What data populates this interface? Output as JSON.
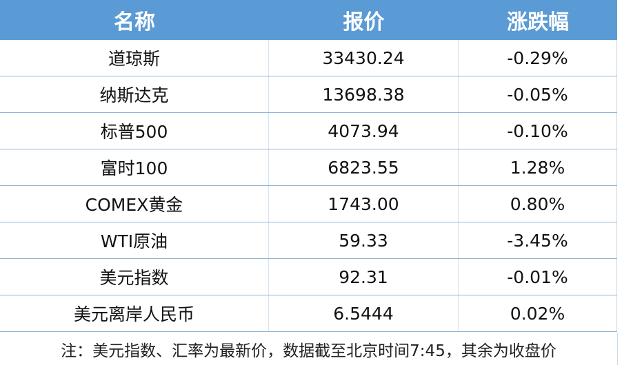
{
  "header": {
    "name": "名称",
    "price": "报价",
    "change": "涨跌幅"
  },
  "rows": [
    {
      "name": "道琼斯",
      "price": "33430.24",
      "change": "-0.29%"
    },
    {
      "name": "纳斯达克",
      "price": "13698.38",
      "change": "-0.05%"
    },
    {
      "name": "标普500",
      "price": "4073.94",
      "change": "-0.10%"
    },
    {
      "name": "富时100",
      "price": "6823.55",
      "change": "1.28%"
    },
    {
      "name": "COMEX黄金",
      "price": "1743.00",
      "change": "0.80%"
    },
    {
      "name": "WTI原油",
      "price": "59.33",
      "change": "-3.45%"
    },
    {
      "name": "美元指数",
      "price": "92.31",
      "change": "-0.01%"
    },
    {
      "name": "美元离岸人民币",
      "price": "6.5444",
      "change": "0.02%"
    }
  ],
  "note": "注：美元指数、汇率为最新价，数据截至北京时间7:45，其余为收盘价",
  "colors": {
    "header_bg": "#5b9bd5",
    "header_text": "#ffffff"
  }
}
